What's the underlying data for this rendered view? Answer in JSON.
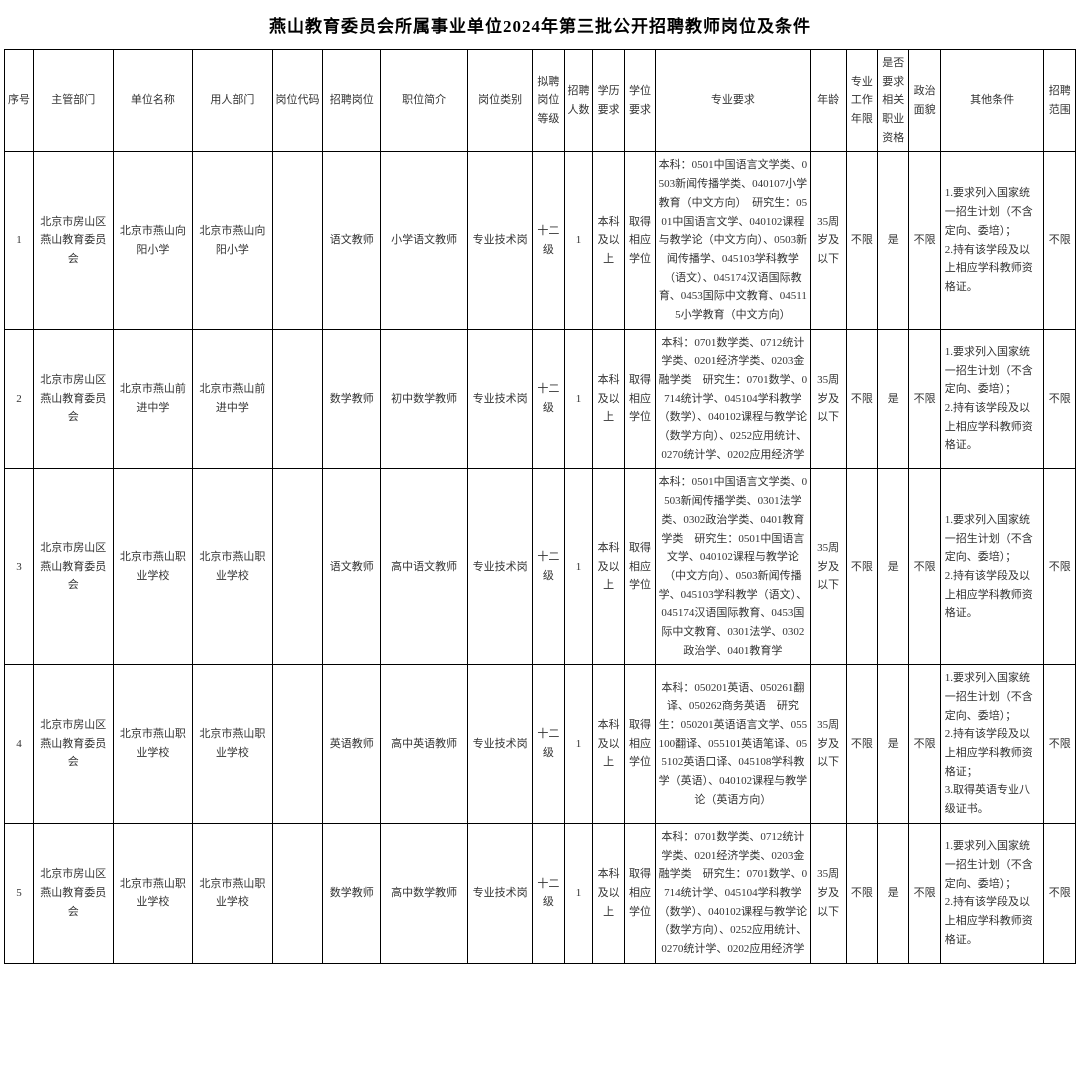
{
  "title": "燕山教育委员会所属事业单位2024年第三批公开招聘教师岗位及条件",
  "headers": {
    "seq": "序号",
    "supervisor": "主管部门",
    "unit": "单位名称",
    "employer": "用人部门",
    "code": "岗位代码",
    "position": "招聘岗位",
    "desc": "职位简介",
    "category": "岗位类别",
    "grade": "拟聘岗位等级",
    "num": "招聘人数",
    "edu": "学历要求",
    "degree": "学位要求",
    "major": "专业要求",
    "age": "年龄",
    "exp": "专业工作年限",
    "qual": "是否要求相关职业资格",
    "political": "政治面貌",
    "other": "其他条件",
    "scope": "招聘范围"
  },
  "rows": [
    {
      "seq": "1",
      "supervisor": "北京市房山区燕山教育委员会",
      "unit": "北京市燕山向阳小学",
      "employer": "北京市燕山向阳小学",
      "code": "",
      "position": "语文教师",
      "desc": "小学语文教师",
      "category": "专业技术岗",
      "grade": "十二级",
      "num": "1",
      "edu": "本科及以上",
      "degree": "取得相应学位",
      "major": "本科：0501中国语言文学类、0503新闻传播学类、040107小学教育（中文方向）　研究生：0501中国语言文学、040102课程与教学论（中文方向）、0503新闻传播学、045103学科教学（语文）、045174汉语国际教育、0453国际中文教育、045115小学教育（中文方向）",
      "age": "35周岁及以下",
      "exp": "不限",
      "qual": "是",
      "political": "不限",
      "other": "1.要求列入国家统一招生计划（不含定向、委培）；\n2.持有该学段及以上相应学科教师资格证。",
      "scope": "不限"
    },
    {
      "seq": "2",
      "supervisor": "北京市房山区燕山教育委员会",
      "unit": "北京市燕山前进中学",
      "employer": "北京市燕山前进中学",
      "code": "",
      "position": "数学教师",
      "desc": "初中数学教师",
      "category": "专业技术岗",
      "grade": "十二级",
      "num": "1",
      "edu": "本科及以上",
      "degree": "取得相应学位",
      "major": "本科：0701数学类、0712统计学类、0201经济学类、0203金融学类　研究生：0701数学、0714统计学、045104学科教学（数学）、040102课程与教学论（数学方向）、0252应用统计、0270统计学、0202应用经济学",
      "age": "35周岁及以下",
      "exp": "不限",
      "qual": "是",
      "political": "不限",
      "other": "1.要求列入国家统一招生计划（不含定向、委培）；\n2.持有该学段及以上相应学科教师资格证。",
      "scope": "不限"
    },
    {
      "seq": "3",
      "supervisor": "北京市房山区燕山教育委员会",
      "unit": "北京市燕山职业学校",
      "employer": "北京市燕山职业学校",
      "code": "",
      "position": "语文教师",
      "desc": "高中语文教师",
      "category": "专业技术岗",
      "grade": "十二级",
      "num": "1",
      "edu": "本科及以上",
      "degree": "取得相应学位",
      "major": "本科：0501中国语言文学类、0503新闻传播学类、0301法学类、0302政治学类、0401教育学类　研究生：0501中国语言文学、040102课程与教学论（中文方向）、0503新闻传播学、045103学科教学（语文）、045174汉语国际教育、0453国际中文教育、0301法学、0302政治学、0401教育学",
      "age": "35周岁及以下",
      "exp": "不限",
      "qual": "是",
      "political": "不限",
      "other": "1.要求列入国家统一招生计划（不含定向、委培）；\n2.持有该学段及以上相应学科教师资格证。",
      "scope": "不限"
    },
    {
      "seq": "4",
      "supervisor": "北京市房山区燕山教育委员会",
      "unit": "北京市燕山职业学校",
      "employer": "北京市燕山职业学校",
      "code": "",
      "position": "英语教师",
      "desc": "高中英语教师",
      "category": "专业技术岗",
      "grade": "十二级",
      "num": "1",
      "edu": "本科及以上",
      "degree": "取得相应学位",
      "major": "本科：050201英语、050261翻译、050262商务英语　研究生：050201英语语言文学、055100翻译、055101英语笔译、055102英语口译、045108学科教学（英语）、040102课程与教学论（英语方向）",
      "age": "35周岁及以下",
      "exp": "不限",
      "qual": "是",
      "political": "不限",
      "other": "1.要求列入国家统一招生计划（不含定向、委培）；\n2.持有该学段及以上相应学科教师资格证；\n3.取得英语专业八级证书。",
      "scope": "不限"
    },
    {
      "seq": "5",
      "supervisor": "北京市房山区燕山教育委员会",
      "unit": "北京市燕山职业学校",
      "employer": "北京市燕山职业学校",
      "code": "",
      "position": "数学教师",
      "desc": "高中数学教师",
      "category": "专业技术岗",
      "grade": "十二级",
      "num": "1",
      "edu": "本科及以上",
      "degree": "取得相应学位",
      "major": "本科：0701数学类、0712统计学类、0201经济学类、0203金融学类　研究生：0701数学、0714统计学、045104学科教学（数学）、040102课程与教学论（数学方向）、0252应用统计、0270统计学、0202应用经济学",
      "age": "35周岁及以下",
      "exp": "不限",
      "qual": "是",
      "political": "不限",
      "other": "1.要求列入国家统一招生计划（不含定向、委培）；\n2.持有该学段及以上相应学科教师资格证。",
      "scope": "不限"
    }
  ]
}
